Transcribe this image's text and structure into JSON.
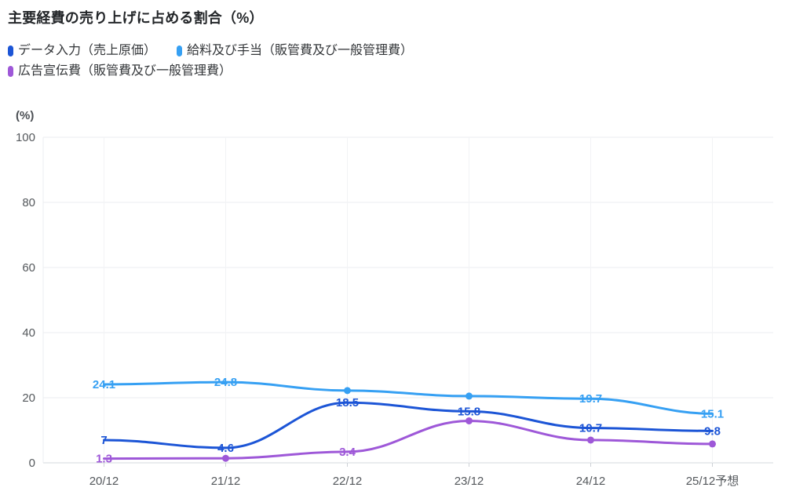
{
  "chart_data": {
    "type": "line",
    "title": "主要経費の売り上げに占める割合（%）",
    "unit_label": "(%)",
    "categories": [
      "20/12",
      "21/12",
      "22/12",
      "23/12",
      "24/12",
      "25/12予想"
    ],
    "series": [
      {
        "name": "データ入力（売上原価）",
        "color": "#1C55D6",
        "values": [
          7,
          4.6,
          18.5,
          15.8,
          10.7,
          9.8
        ],
        "point_labels": [
          "7",
          "4.6",
          "18.5",
          "15.8",
          "10.7",
          "9.8"
        ]
      },
      {
        "name": "給料及び手当（販管費及び一般管理費）",
        "color": "#36A0F3",
        "values": [
          24.1,
          24.8,
          22.2,
          20.5,
          19.7,
          15.1
        ],
        "point_labels": [
          "24.1",
          "24.8",
          null,
          null,
          "19.7",
          "15.1"
        ]
      },
      {
        "name": "広告宣伝費（販管費及び一般管理費）",
        "color": "#9E58D8",
        "values": [
          1.3,
          1.4,
          3.4,
          12.9,
          7.0,
          5.8
        ],
        "point_labels": [
          "1.3",
          null,
          "3.4",
          null,
          null,
          null
        ]
      }
    ],
    "ylim": [
      0,
      100
    ],
    "yticks": [
      0,
      20,
      40,
      60,
      80,
      100
    ],
    "grid": true,
    "legend_position": "top-left",
    "colors": {
      "axis_line": "#d5d9de",
      "h_gridline": "#ebedf0",
      "v_gridline": "#f2f3f5",
      "tick_mark": "#cdd1d6",
      "tick_label": "#54585c"
    }
  }
}
